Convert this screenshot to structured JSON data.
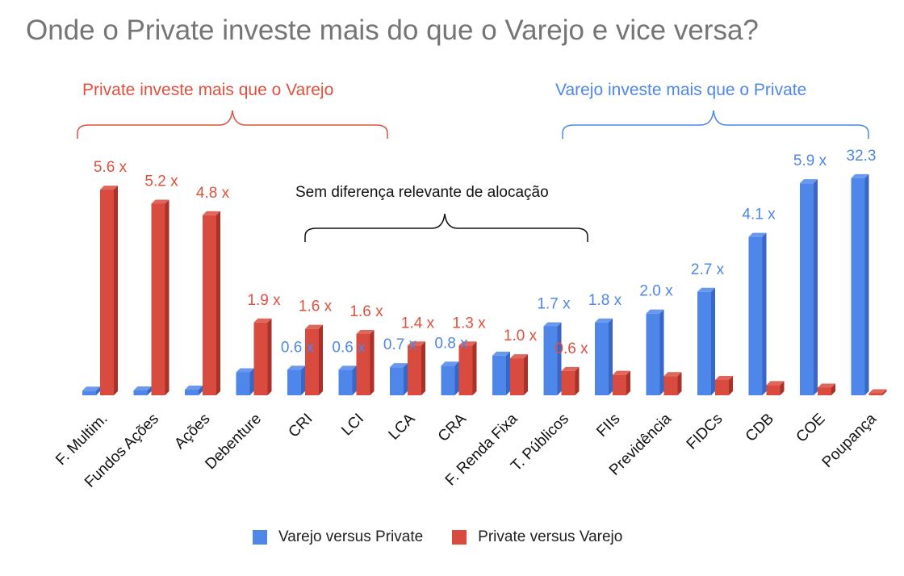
{
  "title": "Onde o Private investe mais do que o Varejo e vice versa?",
  "annotations": {
    "private_more": "Private investe mais que o Varejo",
    "varejo_more": "Varejo investe mais que o Private",
    "no_difference": "Sem diferença relevante de alocação"
  },
  "colors": {
    "varejo": "#4f86ea",
    "private": "#d84b3e",
    "private_label": "#e0503f",
    "varejo_label": "#4f86ea",
    "title": "#757575"
  },
  "chart_data": {
    "type": "bar",
    "categories": [
      "F. Multim.",
      "Fundos Ações",
      "Ações",
      "Debenture",
      "CRI",
      "LCI",
      "LCA",
      "CRA",
      "F. Renda Fixa",
      "T. Públicos",
      "FIIs",
      "Previdência",
      "FIDCs",
      "CDB",
      "COE",
      "Poupança"
    ],
    "series": [
      {
        "name": "Varejo versus Private",
        "values": [
          0.18,
          0.19,
          0.22,
          0.9,
          1.0,
          1.0,
          1.1,
          1.16,
          1.55,
          2.7,
          2.85,
          3.2,
          4.05,
          6.2,
          8.3,
          8.5
        ]
      },
      {
        "name": "Private versus Varejo",
        "values": [
          8.05,
          7.5,
          7.05,
          2.85,
          2.6,
          2.4,
          1.95,
          1.95,
          1.45,
          0.95,
          0.8,
          0.75,
          0.6,
          0.4,
          0.3,
          0.08
        ]
      }
    ],
    "data_labels": [
      {
        "text": "5.6 x",
        "category": "F. Multim.",
        "series": "Private versus Varejo"
      },
      {
        "text": "5.2 x",
        "category": "Fundos Ações",
        "series": "Private versus Varejo"
      },
      {
        "text": "4.8 x",
        "category": "Ações",
        "series": "Private versus Varejo"
      },
      {
        "text": "1.9 x",
        "category": "Debenture",
        "series": "Private versus Varejo"
      },
      {
        "text": "0.6 x",
        "category": "CRI",
        "series": "Varejo versus Private"
      },
      {
        "text": "1.6 x",
        "category": "CRI",
        "series": "Private versus Varejo"
      },
      {
        "text": "0.6 x",
        "category": "LCI",
        "series": "Varejo versus Private"
      },
      {
        "text": "1.6 x",
        "category": "LCI",
        "series": "Private versus Varejo"
      },
      {
        "text": "0.7 x",
        "category": "LCA",
        "series": "Varejo versus Private"
      },
      {
        "text": "1.4 x",
        "category": "LCA",
        "series": "Private versus Varejo"
      },
      {
        "text": "0.8 x",
        "category": "CRA",
        "series": "Varejo versus Private"
      },
      {
        "text": "1.3 x",
        "category": "CRA",
        "series": "Private versus Varejo"
      },
      {
        "text": "1.0 x",
        "category": "F. Renda Fixa",
        "series": "Private versus Varejo"
      },
      {
        "text": "1.7 x",
        "category": "T. Públicos",
        "series": "Varejo versus Private"
      },
      {
        "text": "0.6 x",
        "category": "T. Públicos",
        "series": "Private versus Varejo"
      },
      {
        "text": "1.8 x",
        "category": "FIIs",
        "series": "Varejo versus Private"
      },
      {
        "text": "2.0 x",
        "category": "Previdência",
        "series": "Varejo versus Private"
      },
      {
        "text": "2.7 x",
        "category": "FIDCs",
        "series": "Varejo versus Private"
      },
      {
        "text": "4.1 x",
        "category": "CDB",
        "series": "Varejo versus Private"
      },
      {
        "text": "5.9 x",
        "category": "COE",
        "series": "Varejo versus Private"
      },
      {
        "text": "32.3",
        "category": "Poupança",
        "series": "Varejo versus Private"
      }
    ],
    "ylim": [
      0,
      9
    ],
    "grid": false,
    "legend": "bottom-center"
  },
  "legend": {
    "varejo": "Varejo versus Private",
    "private": "Private versus Varejo"
  }
}
